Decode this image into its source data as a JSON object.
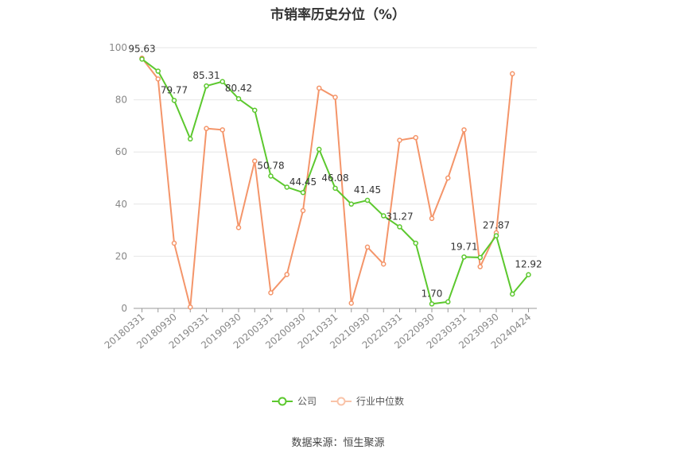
{
  "chart_data": {
    "type": "line",
    "title": "市销率历史分位（%）",
    "xlabel": "",
    "ylabel": "",
    "ylim": [
      0,
      100
    ],
    "yticks": [
      0,
      20,
      40,
      60,
      80,
      100
    ],
    "grid": true,
    "legend_position": "bottom",
    "x_tick_labels": [
      "20180331",
      "20180930",
      "20190331",
      "20190930",
      "20200331",
      "20200930",
      "20210331",
      "20210930",
      "20220331",
      "20220930",
      "20230331",
      "20230930",
      "20240424"
    ],
    "series": [
      {
        "name": "公司",
        "color": "#5cc82e",
        "values": [
          95.63,
          91.0,
          79.77,
          65.0,
          85.31,
          87.0,
          80.42,
          76.0,
          50.78,
          46.5,
          44.45,
          61.0,
          46.08,
          40.0,
          41.45,
          35.5,
          31.27,
          25.0,
          1.7,
          2.5,
          19.71,
          19.5,
          27.87,
          5.5,
          12.92
        ],
        "labels": [
          "95.63",
          "",
          "79.77",
          "",
          "85.31",
          "",
          "80.42",
          "",
          "50.78",
          "",
          "44.45",
          "",
          "46.08",
          "",
          "41.45",
          "",
          "31.27",
          "",
          "1.70",
          "",
          "19.71",
          "",
          "27.87",
          "",
          "12.92"
        ]
      },
      {
        "name": "行业中位数",
        "color": "#f4956a",
        "values": [
          96.0,
          88.0,
          25.0,
          0.5,
          69.0,
          68.5,
          31.0,
          56.5,
          6.0,
          13.0,
          37.5,
          84.5,
          81.0,
          2.0,
          23.5,
          17.0,
          64.5,
          65.5,
          34.5,
          50.0,
          68.5,
          16.0,
          29.0,
          90.0,
          null
        ]
      }
    ]
  },
  "source": "数据来源：恒生聚源"
}
